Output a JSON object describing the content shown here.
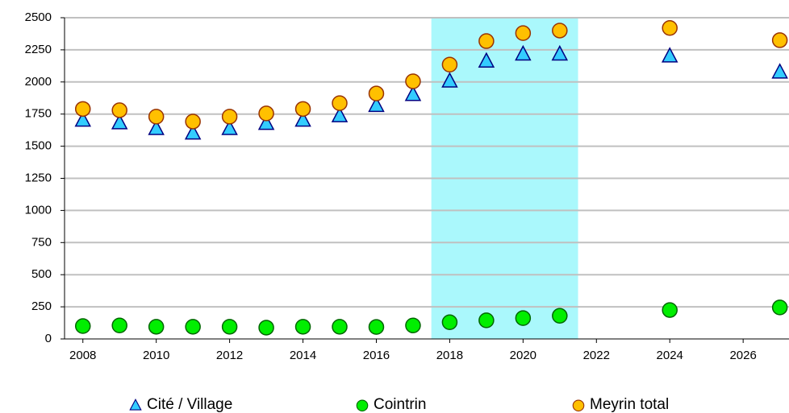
{
  "chart_data": {
    "type": "scatter",
    "x": [
      2008,
      2009,
      2010,
      2011,
      2012,
      2013,
      2014,
      2015,
      2016,
      2017,
      2018,
      2019,
      2020,
      2021,
      2024,
      2027
    ],
    "series": [
      {
        "name": "Cité / Village",
        "color": "#33ccff",
        "stroke": "#000080",
        "marker": "triangle",
        "values": [
          1700,
          1680,
          1635,
          1600,
          1635,
          1675,
          1700,
          1735,
          1815,
          1900,
          2005,
          2160,
          2215,
          2215,
          2200,
          2075
        ]
      },
      {
        "name": "Cointrin",
        "color": "#00ee00",
        "stroke": "#006600",
        "marker": "circle",
        "values": [
          100,
          105,
          95,
          95,
          95,
          88,
          95,
          95,
          93,
          105,
          130,
          145,
          162,
          180,
          225,
          245
        ]
      },
      {
        "name": "Meyrin total",
        "color": "#ffc000",
        "stroke": "#993300",
        "marker": "circle",
        "values": [
          1790,
          1780,
          1730,
          1692,
          1730,
          1755,
          1790,
          1835,
          1910,
          2005,
          2135,
          2318,
          2380,
          2400,
          2420,
          2325
        ]
      }
    ],
    "xlim": [
      2007.5,
      2027.25
    ],
    "xticks": [
      2008,
      2010,
      2012,
      2014,
      2016,
      2018,
      2020,
      2022,
      2024,
      2026
    ],
    "ylim": [
      0,
      2500
    ],
    "yticks": [
      0,
      250,
      500,
      750,
      1000,
      1250,
      1500,
      1750,
      2000,
      2250,
      2500
    ],
    "grid": true,
    "highlight": {
      "range": [
        2017.5,
        2021.5
      ],
      "color": "#aaf8fc"
    },
    "legend": "bottom"
  }
}
